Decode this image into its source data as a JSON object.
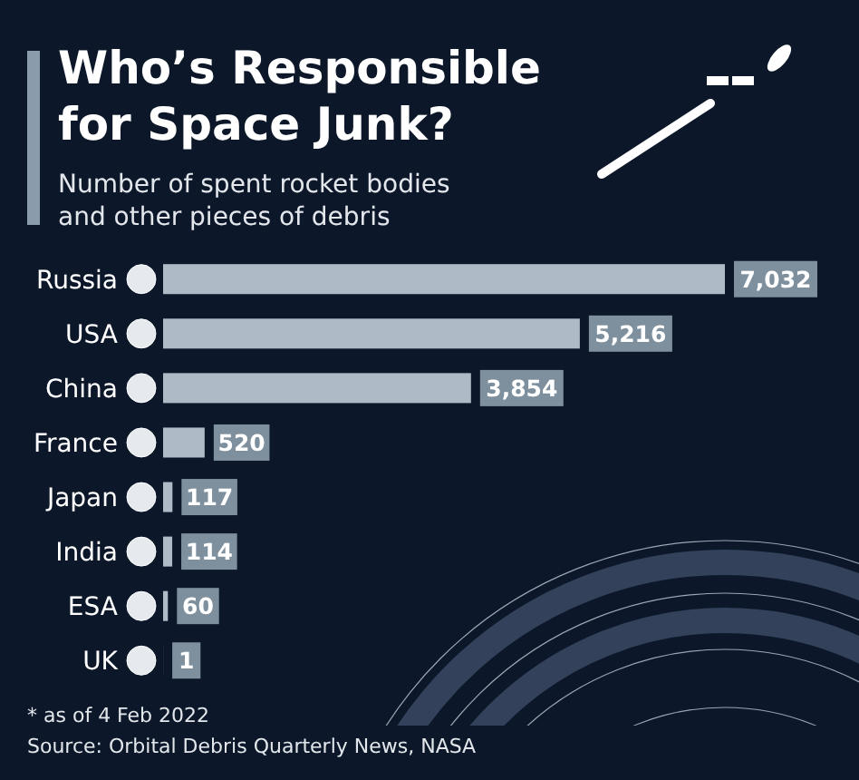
{
  "chart_data": {
    "type": "bar",
    "orientation": "horizontal",
    "title": "Who’s Responsible for Space Junk?",
    "subtitle": "Number of spent rocket bodies and other pieces of debris",
    "categories": [
      "Russia",
      "USA",
      "China",
      "France",
      "Japan",
      "India",
      "ESA",
      "UK"
    ],
    "values": [
      7032,
      5216,
      3854,
      520,
      117,
      114,
      60,
      1
    ],
    "value_labels": [
      "7,032",
      "5,216",
      "3,854",
      "520",
      "117",
      "114",
      "60",
      "1"
    ],
    "color": "#aebbc6",
    "annotations": [
      "* as of 4 Feb 2022",
      "Source: Orbital Debris Quarterly News, NASA"
    ]
  }
}
